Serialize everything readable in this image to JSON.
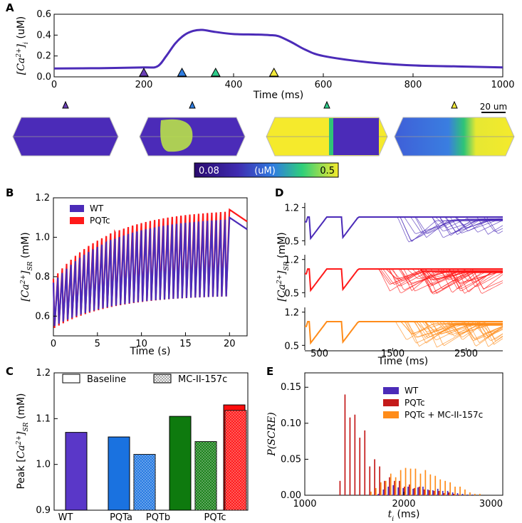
{
  "chart_data": [
    {
      "panel": "A",
      "type": "line",
      "xlabel": "Time (ms)",
      "ylabel": "[Ca2+]i (uM)",
      "ylabel_parts": {
        "bracket_open": "[",
        "base": "Ca",
        "sup": "2+",
        "bracket_close": "]",
        "sub": "i",
        "unit": " (uM)"
      },
      "xlim": [
        0,
        1000
      ],
      "ylim": [
        0.0,
        0.6
      ],
      "xticks": [
        "0",
        "200",
        "400",
        "600",
        "800",
        "1000"
      ],
      "yticks": [
        "0.0",
        "0.2",
        "0.4",
        "0.6"
      ],
      "color": "#4b2bb8",
      "series": [
        {
          "name": "[Ca2+]i",
          "x": [
            0,
            100,
            200,
            230,
            250,
            270,
            290,
            310,
            330,
            360,
            400,
            450,
            480,
            500,
            530,
            560,
            600,
            700,
            800,
            900,
            1000
          ],
          "y": [
            0.08,
            0.083,
            0.09,
            0.1,
            0.2,
            0.32,
            0.4,
            0.44,
            0.45,
            0.43,
            0.41,
            0.405,
            0.4,
            0.39,
            0.33,
            0.26,
            0.2,
            0.14,
            0.11,
            0.1,
            0.09
          ]
        }
      ],
      "markers": [
        {
          "t": 200,
          "color": "#6a3fb5"
        },
        {
          "t": 285,
          "color": "#2f7de0"
        },
        {
          "t": 360,
          "color": "#2ecc8a"
        },
        {
          "t": 490,
          "color": "#f2e93a"
        }
      ],
      "snapshots": [
        {
          "t": 200,
          "color": "#6a3fb5"
        },
        {
          "t": 285,
          "color": "#2f7de0"
        },
        {
          "t": 360,
          "color": "#2ecc8a"
        },
        {
          "t": 490,
          "color": "#f2e93a"
        }
      ],
      "scale_bar": "20 um",
      "colorbar": {
        "min": "0.08",
        "unit": "(uM)",
        "max": "0.5"
      }
    },
    {
      "panel": "B",
      "type": "line",
      "xlabel": "Time (s)",
      "ylabel": "[Ca2+]SR (mM)",
      "ylabel_parts": {
        "bracket_open": "[",
        "base": "Ca",
        "sup": "2+",
        "bracket_close": "]",
        "sub": "SR",
        "unit": " (mM)"
      },
      "xlim": [
        0,
        22
      ],
      "ylim": [
        0.5,
        1.2
      ],
      "xticks": [
        "0",
        "5",
        "10",
        "15",
        "20"
      ],
      "yticks": [
        "0.6",
        "0.8",
        "1.0",
        "1.2"
      ],
      "n_beats": 40,
      "series": [
        {
          "name": "WT",
          "color": "#4b2bb8",
          "peak_start": 0.77,
          "peak_end": 1.08,
          "trough_start": 0.55,
          "trough_end": 0.7,
          "after": 1.04
        },
        {
          "name": "PQTc",
          "color": "#ff1a1a",
          "peak_start": 0.79,
          "peak_end": 1.12,
          "trough_start": 0.54,
          "trough_end": 0.7,
          "after": 1.08
        }
      ]
    },
    {
      "panel": "C",
      "type": "bar",
      "xlabel": "",
      "ylabel": "Peak [Ca2+]SR (mM)",
      "ylabel_parts": {
        "bracket_open": "Peak [",
        "base": "Ca",
        "sup": "2+",
        "bracket_close": "]",
        "sub": "SR",
        "unit": " (mM)"
      },
      "ylim": [
        0.9,
        1.2
      ],
      "yticks": [
        "0.9",
        "1.0",
        "1.1",
        "1.2"
      ],
      "categories": [
        "WT",
        "PQTa",
        "PQTb",
        "PQTc"
      ],
      "legend": [
        "Baseline",
        "MC-II-157c"
      ],
      "series": [
        {
          "name": "Baseline",
          "values": [
            1.07,
            1.06,
            1.105,
            1.13
          ]
        },
        {
          "name": "MC-II-157c",
          "values": [
            null,
            1.022,
            1.05,
            1.118
          ]
        }
      ],
      "colors": [
        "#5a37c8",
        "#1a72e0",
        "#0e7a0e",
        "#ff0d0d"
      ]
    },
    {
      "panel": "D",
      "type": "line",
      "xlabel": "Time (ms)",
      "ylabel": "[Ca2+]SR (mM)",
      "ylabel_parts": {
        "bracket_open": "[",
        "base": "Ca",
        "sup": "2+",
        "bracket_close": "]",
        "sub": "SR",
        "unit": " (mM)"
      },
      "xlim": [
        300,
        3000
      ],
      "xticks": [
        "500",
        "1500",
        "2500"
      ],
      "rows": [
        {
          "name": "WT",
          "color": "#4b2bb8",
          "yticks": [
            "1.2",
            "0.5"
          ],
          "ylim": [
            0.4,
            1.3
          ],
          "n_traces": 22
        },
        {
          "name": "PQTc",
          "color": "#ff1a1a",
          "yticks": [
            "1.2",
            "0.5"
          ],
          "ylim": [
            0.4,
            1.3
          ],
          "n_traces": 45
        },
        {
          "name": "PQTc + MC-II-157c",
          "color": "#ff8c1a",
          "yticks": [
            "1.2",
            "0.5"
          ],
          "ylim": [
            0.4,
            1.3
          ],
          "n_traces": 40
        }
      ]
    },
    {
      "panel": "E",
      "type": "bar",
      "xlabel": "ti (ms)",
      "xlabel_parts": {
        "base": "t",
        "sub": "i",
        "unit": " (ms)"
      },
      "ylabel": "P(SCRE)",
      "xlim": [
        1000,
        3000
      ],
      "ylim": [
        0.0,
        0.17
      ],
      "xticks": [
        "1000",
        "2000",
        "3000"
      ],
      "yticks": [
        "0.00",
        "0.05",
        "0.10",
        "0.15"
      ],
      "x": [
        1300,
        1350,
        1400,
        1450,
        1500,
        1550,
        1600,
        1650,
        1700,
        1750,
        1800,
        1850,
        1900,
        1950,
        2000,
        2050,
        2100,
        2150,
        2200,
        2250,
        2300,
        2350,
        2400,
        2450,
        2500,
        2550,
        2600,
        2650,
        2700,
        2750
      ],
      "series": [
        {
          "name": "WT",
          "color": "#4b2bb8",
          "values": [
            0,
            0,
            0,
            0,
            0,
            0,
            0,
            0,
            0,
            0.002,
            0.008,
            0.012,
            0.014,
            0.011,
            0.01,
            0.012,
            0.009,
            0.011,
            0.012,
            0.008,
            0.007,
            0.009,
            0.006,
            0.006,
            0.004,
            0.003,
            0.002,
            0.001,
            0.001,
            0.0
          ]
        },
        {
          "name": "PQTc",
          "color": "#c41a1a",
          "values": [
            0,
            0.02,
            0.14,
            0.108,
            0.112,
            0.08,
            0.09,
            0.04,
            0.05,
            0.04,
            0.02,
            0.025,
            0.02,
            0.02,
            0.012,
            0.015,
            0.01,
            0.012,
            0.008,
            0.007,
            0.006,
            0.006,
            0.003,
            0.004,
            0.002,
            0.001,
            0,
            0,
            0,
            0
          ]
        },
        {
          "name": "PQTc + MC-II-157c",
          "color": "#ff8c1a",
          "values": [
            0,
            0,
            0,
            0,
            0,
            0,
            0,
            0.005,
            0.01,
            0.018,
            0.02,
            0.03,
            0.025,
            0.035,
            0.038,
            0.037,
            0.037,
            0.03,
            0.035,
            0.029,
            0.027,
            0.022,
            0.02,
            0.018,
            0.012,
            0.012,
            0.008,
            0.004,
            0.002,
            0.002
          ]
        }
      ]
    }
  ]
}
